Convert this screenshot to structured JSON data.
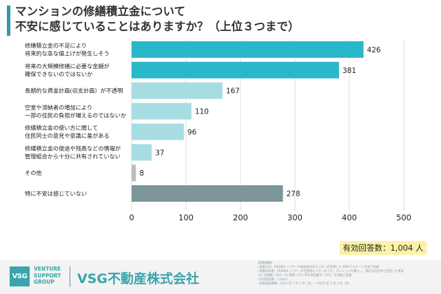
{
  "title": {
    "line1": "マンションの修繕積立金について",
    "line2": "不安に感じていることはありますか？（上位３つまで）"
  },
  "chart_data": {
    "type": "bar",
    "orientation": "horizontal",
    "categories": [
      [
        "修繕積立金の不足により",
        "将来的な急な値上げが発生しそう"
      ],
      [
        "将来の大規模修繕に必要な金額が",
        "確保できないのではないか"
      ],
      [
        "長期的な資金計画(収支計画）が不透明"
      ],
      [
        "空室や滞納者の増加により",
        "一部の住民の負担が増えるのではないか"
      ],
      [
        "修繕積立金の使い方に関して",
        "住民同士の意見や意識に差がある"
      ],
      [
        "修繕積立金の使途や残高などの情報が",
        "管理組合から十分に共有されていない"
      ],
      [
        "その他"
      ],
      [
        "特に不安は感じていない"
      ]
    ],
    "values": [
      426,
      381,
      167,
      110,
      96,
      37,
      8,
      278
    ],
    "bar_colors": [
      "#29b8c9",
      "#29b8c9",
      "#a8dce3",
      "#a8dce3",
      "#a8dce3",
      "#a8dce3",
      "#bdbdbd",
      "#7d9599"
    ],
    "xlim": [
      0,
      500
    ],
    "xticks": [
      "0",
      "100",
      "200",
      "300",
      "400",
      "500"
    ]
  },
  "total_respondents": "有効回答数：1,004 人",
  "footer": {
    "logo_mark": "VSG",
    "logo_sub": [
      "VENTURE",
      "SUPPORT",
      "GROUP"
    ],
    "company": "VSG不動産株式会社",
    "notes": [
      "【調査概要】",
      "・調査方法：PRIZMA（リサーチ株式会社のモニターを利用した WEBアンケート方式で実施",
      "・調査の対象：PRIZMA（リサーチ社登録モニターのうち、マンションを購入し、現在も居住中と回答した男女",
      "（21 首都圏 / 502・23 関西 / 251 県外現況都市 / 251）を対象に実施",
      "・有効回答数：1,004人",
      "・調査実施期間：2025 年 7 月 2 日（水）～ 2025 年 7 月 3 日（木）"
    ]
  }
}
